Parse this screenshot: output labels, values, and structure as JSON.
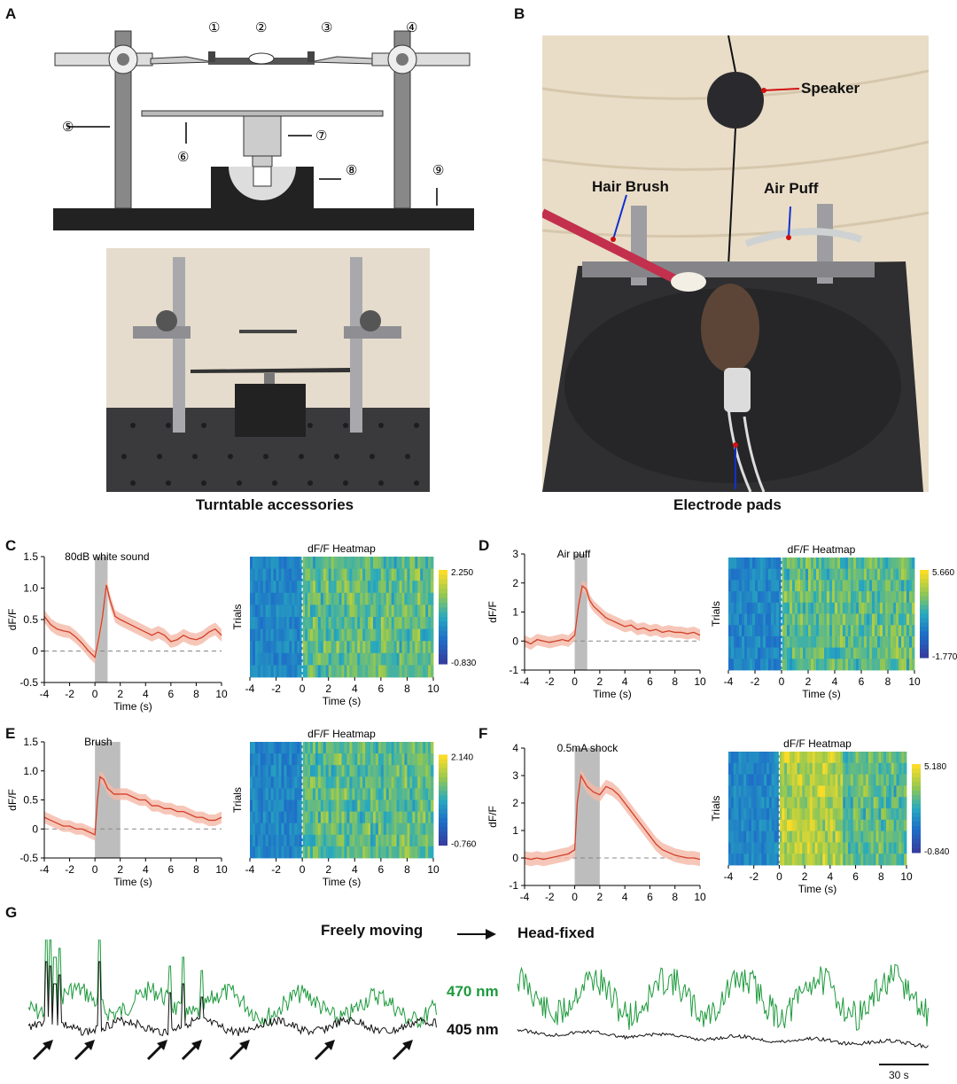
{
  "panels": {
    "A": "A",
    "B": "B",
    "C": "C",
    "D": "D",
    "E": "E",
    "F": "F",
    "G": "G"
  },
  "panelA": {
    "markers": [
      "①",
      "②",
      "③",
      "④",
      "⑤",
      "⑥",
      "⑦",
      "⑧",
      "⑨"
    ],
    "photo_caption": "Turntable accessories"
  },
  "panelB": {
    "labels": {
      "speaker": "Speaker",
      "hair_brush": "Hair Brush",
      "air_puff": "Air Puff",
      "electrode": "Electrode pads"
    }
  },
  "colors": {
    "trace": "#d2402a",
    "band": "#f4b9a8",
    "stim": "#bdbdbd",
    "green": "#1d9a3c",
    "black": "#111111"
  },
  "charts": [
    {
      "id": "C",
      "stim_label": "80dB white sound",
      "ylabel": "dF/F",
      "xlabel": "Time (s)",
      "yticks": [
        "1.5",
        "1.0",
        "0.5",
        "0",
        "-0.5"
      ],
      "xticks": [
        "-4",
        "-2",
        "0",
        "2",
        "4",
        "6",
        "8",
        "10"
      ],
      "heat_title": "dF/F Heatmap",
      "heat_ylabel": "Trials",
      "cmax": "2.250",
      "cmin": "-0.830"
    },
    {
      "id": "D",
      "stim_label": "Air puff",
      "ylabel": "dF/F",
      "xlabel": "Time (s)",
      "yticks": [
        "3",
        "2",
        "1",
        "0",
        "-1"
      ],
      "xticks": [
        "-4",
        "-2",
        "0",
        "2",
        "4",
        "6",
        "8",
        "10"
      ],
      "heat_title": "dF/F Heatmap",
      "heat_ylabel": "Trials",
      "cmax": "5.660",
      "cmin": "-1.770"
    },
    {
      "id": "E",
      "stim_label": "Brush",
      "ylabel": "dF/F",
      "xlabel": "Time (s)",
      "yticks": [
        "1.5",
        "1.0",
        "0.5",
        "0",
        "-0.5"
      ],
      "xticks": [
        "-4",
        "-2",
        "0",
        "2",
        "4",
        "6",
        "8",
        "10"
      ],
      "heat_title": "dF/F Heatmap",
      "heat_ylabel": "Trials",
      "cmax": "2.140",
      "cmin": "-0.760"
    },
    {
      "id": "F",
      "stim_label": "0.5mA shock",
      "ylabel": "dF/F",
      "xlabel": "Time (s)",
      "yticks": [
        "4",
        "3",
        "2",
        "1",
        "0",
        "-1"
      ],
      "xticks": [
        "-4",
        "-2",
        "0",
        "2",
        "4",
        "6",
        "8",
        "10"
      ],
      "heat_title": "dF/F Heatmap",
      "heat_ylabel": "Trials",
      "cmax": "5.180",
      "cmin": "-0.840"
    }
  ],
  "chart_data": [
    {
      "type": "line",
      "panel": "C",
      "ylim": [
        -0.5,
        1.5
      ],
      "xlim": [
        -4,
        10
      ],
      "stim": [
        0,
        1
      ],
      "x": [
        -4,
        -3.5,
        -3,
        -2.5,
        -2,
        -1.5,
        -1,
        -0.5,
        0,
        0.3,
        0.6,
        0.9,
        1.2,
        1.6,
        2,
        2.5,
        3,
        3.5,
        4,
        4.5,
        5,
        5.5,
        6,
        6.5,
        7,
        7.5,
        8,
        8.5,
        9,
        9.5,
        10
      ],
      "y": [
        0.55,
        0.42,
        0.35,
        0.32,
        0.3,
        0.22,
        0.12,
        0.0,
        -0.1,
        0.2,
        0.55,
        1.05,
        0.8,
        0.55,
        0.5,
        0.45,
        0.4,
        0.35,
        0.3,
        0.25,
        0.3,
        0.25,
        0.15,
        0.18,
        0.25,
        0.2,
        0.18,
        0.22,
        0.3,
        0.35,
        0.25
      ]
    },
    {
      "type": "heatmap",
      "panel": "C",
      "rows": 10,
      "x_range": [
        -4,
        10
      ]
    },
    {
      "type": "line",
      "panel": "D",
      "ylim": [
        -1,
        3
      ],
      "xlim": [
        -4,
        10
      ],
      "stim": [
        0,
        1
      ],
      "x": [
        -4,
        -3.5,
        -3,
        -2.5,
        -2,
        -1.5,
        -1,
        -0.5,
        0,
        0.3,
        0.6,
        0.9,
        1.2,
        1.5,
        2,
        2.5,
        3,
        3.5,
        4,
        4.5,
        5,
        5.5,
        6,
        6.5,
        7,
        7.5,
        8,
        8.5,
        9,
        9.5,
        10
      ],
      "y": [
        0.0,
        -0.1,
        0.05,
        0.0,
        -0.05,
        0.0,
        0.05,
        0.0,
        0.2,
        1.2,
        1.9,
        1.8,
        1.4,
        1.2,
        1.0,
        0.8,
        0.7,
        0.6,
        0.5,
        0.55,
        0.4,
        0.45,
        0.35,
        0.4,
        0.3,
        0.35,
        0.3,
        0.3,
        0.25,
        0.3,
        0.2
      ]
    },
    {
      "type": "heatmap",
      "panel": "D",
      "rows": 10,
      "x_range": [
        -4,
        10
      ]
    },
    {
      "type": "line",
      "panel": "E",
      "ylim": [
        -0.5,
        1.5
      ],
      "xlim": [
        -4,
        10
      ],
      "stim": [
        0,
        2
      ],
      "x": [
        -4,
        -3.5,
        -3,
        -2.5,
        -2,
        -1.5,
        -1,
        -0.5,
        0,
        0.2,
        0.4,
        0.7,
        1,
        1.5,
        2,
        2.5,
        3,
        3.5,
        4,
        4.5,
        5,
        5.5,
        6,
        6.5,
        7,
        7.5,
        8,
        8.5,
        9,
        9.5,
        10
      ],
      "y": [
        0.2,
        0.15,
        0.1,
        0.05,
        0.05,
        0.0,
        0.0,
        -0.05,
        -0.1,
        0.5,
        0.9,
        0.85,
        0.7,
        0.6,
        0.6,
        0.6,
        0.55,
        0.5,
        0.5,
        0.4,
        0.4,
        0.35,
        0.35,
        0.3,
        0.3,
        0.25,
        0.2,
        0.2,
        0.15,
        0.15,
        0.2
      ]
    },
    {
      "type": "heatmap",
      "panel": "E",
      "rows": 10,
      "x_range": [
        -4,
        10
      ]
    },
    {
      "type": "line",
      "panel": "F",
      "ylim": [
        -1,
        4
      ],
      "xlim": [
        -4,
        10
      ],
      "stim": [
        0,
        2
      ],
      "x": [
        -4,
        -3.5,
        -3,
        -2.5,
        -2,
        -1.5,
        -1,
        -0.5,
        0,
        0.2,
        0.5,
        1,
        1.5,
        2,
        2.5,
        3,
        3.5,
        4,
        4.5,
        5,
        5.5,
        6,
        6.5,
        7,
        7.5,
        8,
        8.5,
        9,
        9.5,
        10
      ],
      "y": [
        0.0,
        -0.05,
        0.0,
        -0.05,
        0.0,
        0.05,
        0.1,
        0.15,
        0.3,
        2.0,
        3.0,
        2.6,
        2.4,
        2.3,
        2.6,
        2.5,
        2.3,
        2.0,
        1.7,
        1.4,
        1.1,
        0.8,
        0.5,
        0.3,
        0.2,
        0.1,
        0.05,
        0.0,
        0.0,
        -0.05
      ]
    },
    {
      "type": "heatmap",
      "panel": "F",
      "rows": 10,
      "x_range": [
        -4,
        10
      ]
    }
  ],
  "panelG": {
    "title_left": "Freely moving",
    "title_right": "Head-fixed",
    "label_470": "470 nm",
    "label_405": "405 nm",
    "scale": "30 s"
  }
}
